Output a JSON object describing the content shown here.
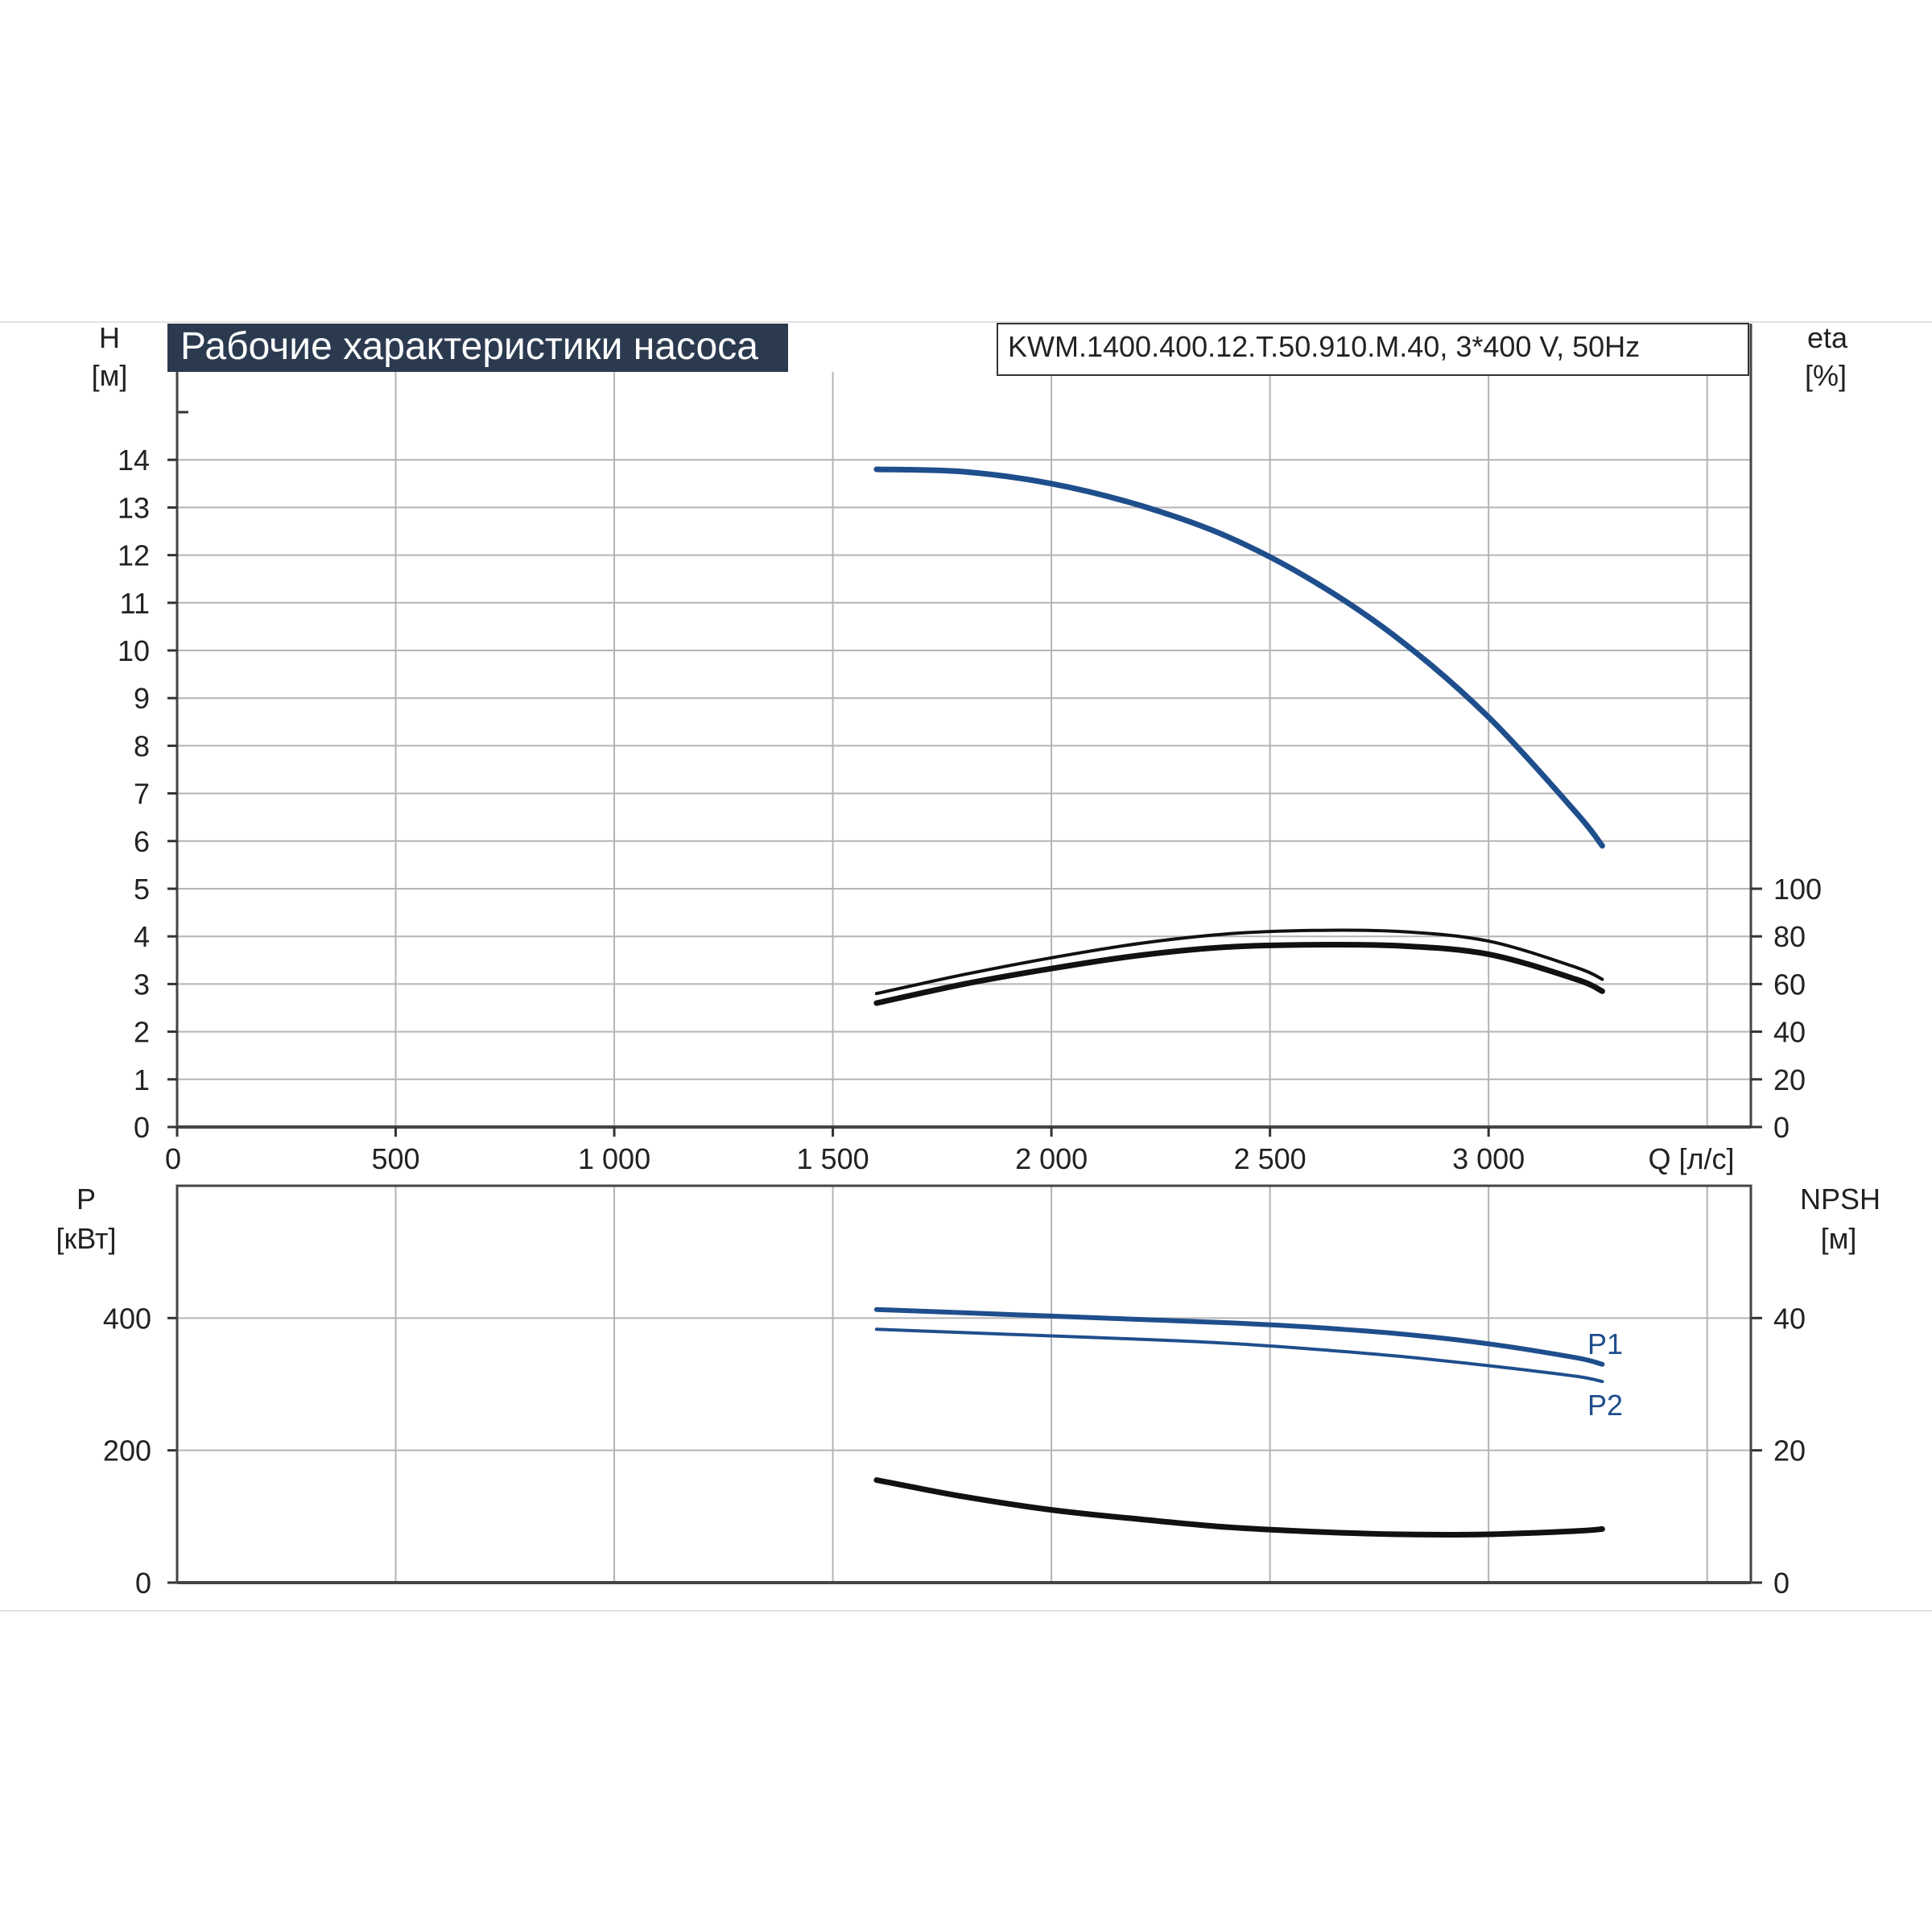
{
  "header": {
    "title": "Рабочие характеристики насоса",
    "model": "KWM.1400.400.12.T.50.910.M.40, 3*400 V, 50Hz"
  },
  "colors": {
    "blue": "#1f4e8c",
    "black": "#111111",
    "grid": "#b4b4b4",
    "title_bg": "#2b3a4f"
  },
  "chart_data": [
    {
      "id": "top",
      "type": "line",
      "x_axis": {
        "label": "Q [л/с]",
        "range": [
          0,
          3600
        ],
        "ticks": [
          0,
          500,
          1000,
          1500,
          2000,
          2500,
          3000
        ],
        "tick_labels": [
          "0",
          "500",
          "1 000",
          "1 500",
          "2 000",
          "2 500",
          "3 000"
        ]
      },
      "y_axis_left": {
        "label_line1": "H",
        "label_line2": "[м]",
        "range": [
          0,
          15
        ],
        "ticks": [
          0,
          1,
          2,
          3,
          4,
          5,
          6,
          7,
          8,
          9,
          10,
          11,
          12,
          13,
          14
        ]
      },
      "y_axis_right": {
        "label_line1": "eta",
        "label_line2": "[%]",
        "range": [
          0,
          100
        ],
        "ticks": [
          0,
          20,
          40,
          60,
          80,
          100
        ]
      },
      "grid": true,
      "series": [
        {
          "key": "head",
          "axis": "left",
          "color": "#1f4e8c",
          "x": [
            1600,
            1800,
            2000,
            2200,
            2400,
            2600,
            2800,
            3000,
            3200,
            3260
          ],
          "y": [
            13.8,
            13.75,
            13.5,
            13.05,
            12.4,
            11.45,
            10.2,
            8.6,
            6.6,
            5.9
          ]
        },
        {
          "key": "eta-thin",
          "axis": "right",
          "color": "#111111",
          "x": [
            1600,
            1800,
            2000,
            2200,
            2400,
            2600,
            2800,
            3000,
            3200,
            3260
          ],
          "y": [
            56,
            64,
            71,
            77,
            81,
            82.5,
            82,
            78,
            67,
            62
          ]
        },
        {
          "key": "eta-thick",
          "axis": "right",
          "color": "#111111",
          "x": [
            1600,
            1800,
            2000,
            2200,
            2400,
            2600,
            2800,
            3000,
            3200,
            3260
          ],
          "y": [
            52,
            60,
            66.5,
            72,
            75.5,
            76.5,
            76,
            72.5,
            62,
            57
          ]
        }
      ]
    },
    {
      "id": "bottom",
      "type": "line",
      "x_axis": {
        "range": [
          0,
          3600
        ],
        "ticks": [
          0,
          500,
          1000,
          1500,
          2000,
          2500,
          3000,
          3500
        ]
      },
      "y_axis_left": {
        "label_line1": "P",
        "label_line2": "[кВт]",
        "range": [
          0,
          600
        ],
        "ticks": [
          0,
          200,
          400
        ]
      },
      "y_axis_right": {
        "label_line1": "NPSH",
        "label_line2": "[м]",
        "range": [
          0,
          60
        ],
        "ticks": [
          0,
          20,
          40
        ]
      },
      "grid": true,
      "series": [
        {
          "name": "P1",
          "axis": "left",
          "color": "#1f4e8c",
          "x": [
            1600,
            1800,
            2000,
            2200,
            2400,
            2600,
            2800,
            3000,
            3200,
            3260
          ],
          "y": [
            413,
            408,
            403,
            398,
            393,
            386,
            376,
            361,
            340,
            330
          ]
        },
        {
          "name": "P2",
          "axis": "left",
          "color": "#1f4e8c",
          "x": [
            1600,
            1800,
            2000,
            2200,
            2400,
            2600,
            2800,
            3000,
            3200,
            3260
          ],
          "y": [
            383,
            378,
            373,
            368,
            362,
            353,
            342,
            328,
            312,
            304
          ]
        },
        {
          "key": "npsh",
          "axis": "right",
          "color": "#111111",
          "x": [
            1600,
            1800,
            2000,
            2200,
            2400,
            2600,
            2800,
            3000,
            3200,
            3260
          ],
          "y": [
            15.5,
            13,
            11,
            9.6,
            8.4,
            7.7,
            7.3,
            7.3,
            7.8,
            8.1
          ]
        }
      ]
    }
  ]
}
